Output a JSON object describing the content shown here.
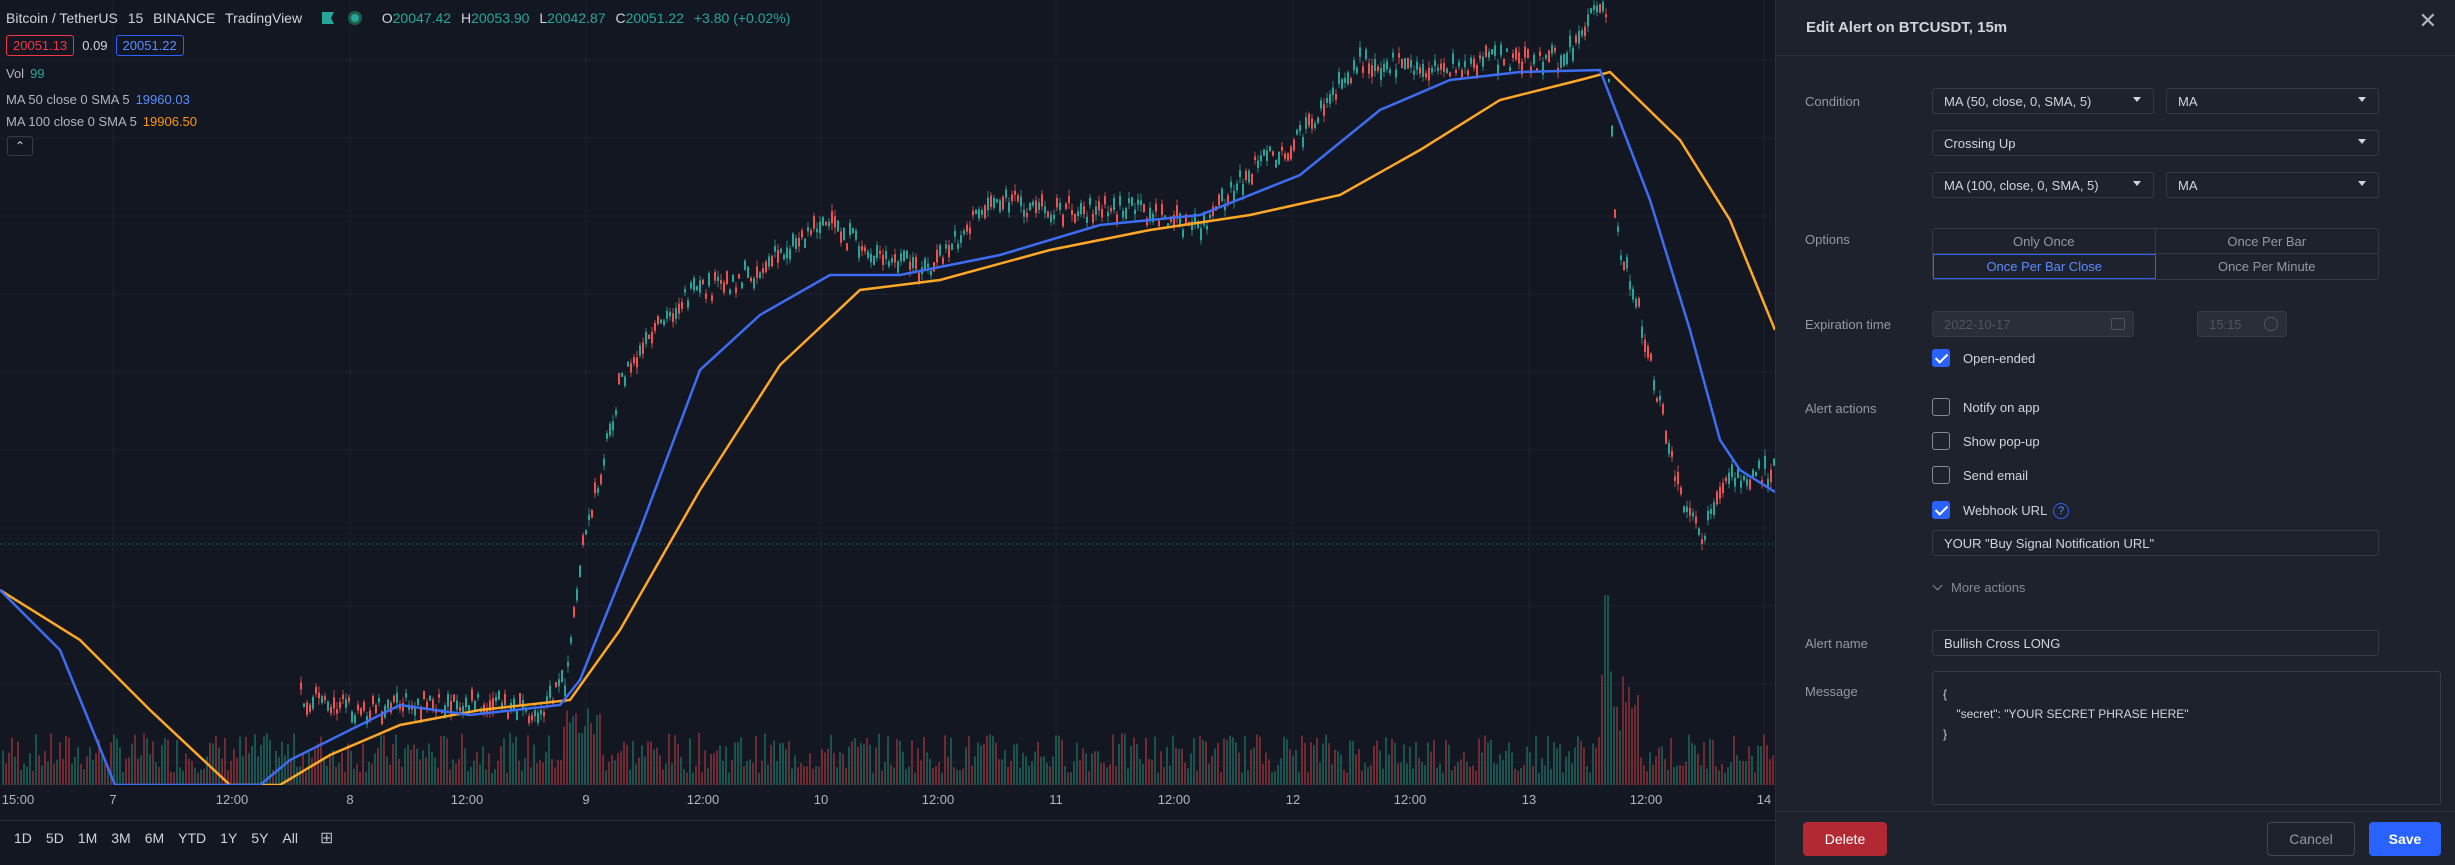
{
  "chart": {
    "symbol": "Bitcoin / TetherUS",
    "interval": "15",
    "exchange": "BINANCE",
    "source": "TradingView",
    "ohlc": {
      "o_key": "O",
      "o": "20047.42",
      "h_key": "H",
      "h": "20053.90",
      "l_key": "L",
      "l": "20042.87",
      "c_key": "C",
      "c": "20051.22",
      "change": "+3.80 (+0.02%)"
    },
    "bid": "20051.13",
    "spread": "0.09",
    "ask": "20051.22",
    "indicators": {
      "vol": {
        "name": "Vol",
        "value": "99"
      },
      "ma50": {
        "name": "MA 50 close 0 SMA 5",
        "value": "19960.03"
      },
      "ma100": {
        "name": "MA 100 close 0 SMA 5",
        "value": "19906.50"
      }
    },
    "collapse_glyph": "⌃",
    "time_labels": [
      "15:00",
      "7",
      "12:00",
      "8",
      "12:00",
      "9",
      "12:00",
      "10",
      "12:00",
      "11",
      "12:00",
      "12",
      "12:00",
      "13",
      "12:00",
      "14"
    ],
    "ranges": [
      "1D",
      "5D",
      "1M",
      "3M",
      "6M",
      "YTD",
      "1Y",
      "5Y",
      "All"
    ],
    "colors": {
      "up": "#26a69a",
      "down": "#ef5350",
      "ma50": "#3d6df2",
      "ma100": "#ffa726"
    }
  },
  "dialog": {
    "title": "Edit Alert on BTCUSDT, 15m",
    "close_glyph": "✕",
    "condition_label": "Condition",
    "cond1": "MA (50, close, 0, SMA, 5)",
    "cond1_plot": "MA",
    "operator": "Crossing Up",
    "cond2": "MA (100, close, 0, SMA, 5)",
    "cond2_plot": "MA",
    "options_label": "Options",
    "options": [
      "Only Once",
      "Once Per Bar",
      "Once Per Bar Close",
      "Once Per Minute"
    ],
    "selected_option": "Once Per Bar Close",
    "expiration_label": "Expiration time",
    "exp_date": "2022-10-17",
    "exp_time": "15:15",
    "open_ended": "Open-ended",
    "alert_actions_label": "Alert actions",
    "actions": {
      "notify": "Notify on app",
      "popup": "Show pop-up",
      "email": "Send email",
      "webhook": "Webhook URL"
    },
    "help_glyph": "?",
    "webhook_url": "YOUR \"Buy Signal Notification URL\"",
    "more_actions": "More actions",
    "alert_name_label": "Alert name",
    "alert_name": "Bullish Cross LONG",
    "message_label": "Message",
    "message": "{\n    \"secret\": \"YOUR SECRET PHRASE HERE\"\n}",
    "delete": "Delete",
    "cancel": "Cancel",
    "save": "Save"
  }
}
